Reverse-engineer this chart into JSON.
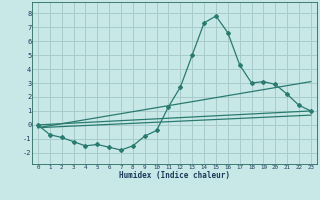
{
  "xlabel": "Humidex (Indice chaleur)",
  "background_color": "#c8e8e8",
  "grid_color": "#a8cccc",
  "line_color": "#2a7a6f",
  "xlim": [
    -0.5,
    23.5
  ],
  "ylim": [
    -2.8,
    8.8
  ],
  "xticks": [
    0,
    1,
    2,
    3,
    4,
    5,
    6,
    7,
    8,
    9,
    10,
    11,
    12,
    13,
    14,
    15,
    16,
    17,
    18,
    19,
    20,
    21,
    22,
    23
  ],
  "yticks": [
    -2,
    -1,
    0,
    1,
    2,
    3,
    4,
    5,
    6,
    7,
    8
  ],
  "series": [
    {
      "x": [
        0,
        1,
        2,
        3,
        4,
        5,
        6,
        7,
        8,
        9,
        10,
        11,
        12,
        13,
        14,
        15,
        16,
        17,
        18,
        19,
        20,
        21,
        22,
        23
      ],
      "y": [
        0,
        -0.7,
        -0.9,
        -1.2,
        -1.5,
        -1.4,
        -1.6,
        -1.8,
        -1.5,
        -0.8,
        -0.4,
        1.3,
        2.7,
        5.0,
        7.3,
        7.8,
        6.6,
        4.3,
        3.0,
        3.1,
        2.9,
        2.2,
        1.4,
        1.0
      ],
      "marker": true
    },
    {
      "x": [
        0,
        23
      ],
      "y": [
        0.0,
        1.0
      ],
      "marker": false
    },
    {
      "x": [
        0,
        23
      ],
      "y": [
        -0.2,
        3.1
      ],
      "marker": false
    },
    {
      "x": [
        0,
        23
      ],
      "y": [
        -0.2,
        0.7
      ],
      "marker": false
    }
  ]
}
